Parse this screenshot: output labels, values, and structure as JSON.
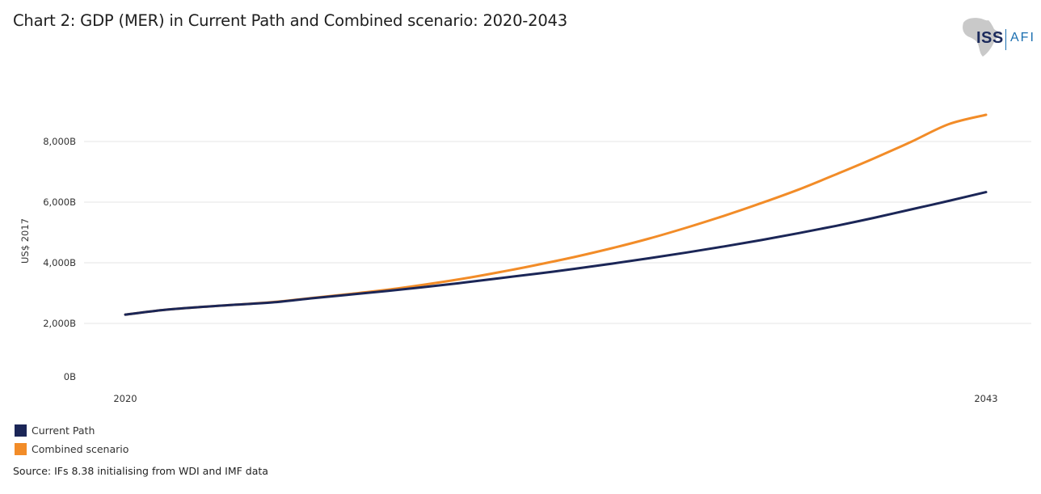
{
  "title": "Chart 2: GDP (MER) in Current Path and Combined scenario: 2020-2043",
  "logo": {
    "name": "ISS AFI",
    "icon": "africa-map-icon",
    "iss": "ISS",
    "afi": "AFI"
  },
  "source": "Source: IFs 8.38 initialising from WDI and IMF data",
  "colors": {
    "current_path": "#1b2657",
    "combined": "#f28c28",
    "grid": "#e6e6e6"
  },
  "chart_data": {
    "type": "line",
    "title": "Chart 2: GDP (MER) in Current Path and Combined scenario: 2020-2043",
    "xlabel": "",
    "ylabel": "US$ 2017",
    "x_tick_labels": [
      "2020",
      "2043"
    ],
    "y_ticks": [
      0,
      2000,
      4000,
      6000,
      8000
    ],
    "y_tick_labels": [
      "0B",
      "2,000B",
      "4,000B",
      "6,000B",
      "8,000B"
    ],
    "xlim": [
      2020,
      2043
    ],
    "ylim": [
      0,
      9000
    ],
    "grid": true,
    "legend_position": "bottom-left",
    "x": [
      2020,
      2021,
      2022,
      2023,
      2024,
      2025,
      2026,
      2027,
      2028,
      2029,
      2030,
      2031,
      2032,
      2033,
      2034,
      2035,
      2036,
      2037,
      2038,
      2039,
      2040,
      2041,
      2042,
      2043
    ],
    "series": [
      {
        "name": "Current Path",
        "color": "#1b2657",
        "values": [
          2290,
          2440,
          2540,
          2620,
          2700,
          2830,
          2950,
          3070,
          3200,
          3340,
          3490,
          3640,
          3800,
          3970,
          4150,
          4340,
          4540,
          4750,
          4980,
          5220,
          5480,
          5760,
          6040,
          6330
        ]
      },
      {
        "name": "Combined scenario",
        "color": "#f28c28",
        "values": [
          2290,
          2440,
          2540,
          2620,
          2710,
          2840,
          2970,
          3110,
          3280,
          3470,
          3690,
          3930,
          4190,
          4480,
          4800,
          5160,
          5550,
          5970,
          6420,
          6920,
          7440,
          7990,
          8570,
          8880
        ]
      }
    ]
  }
}
